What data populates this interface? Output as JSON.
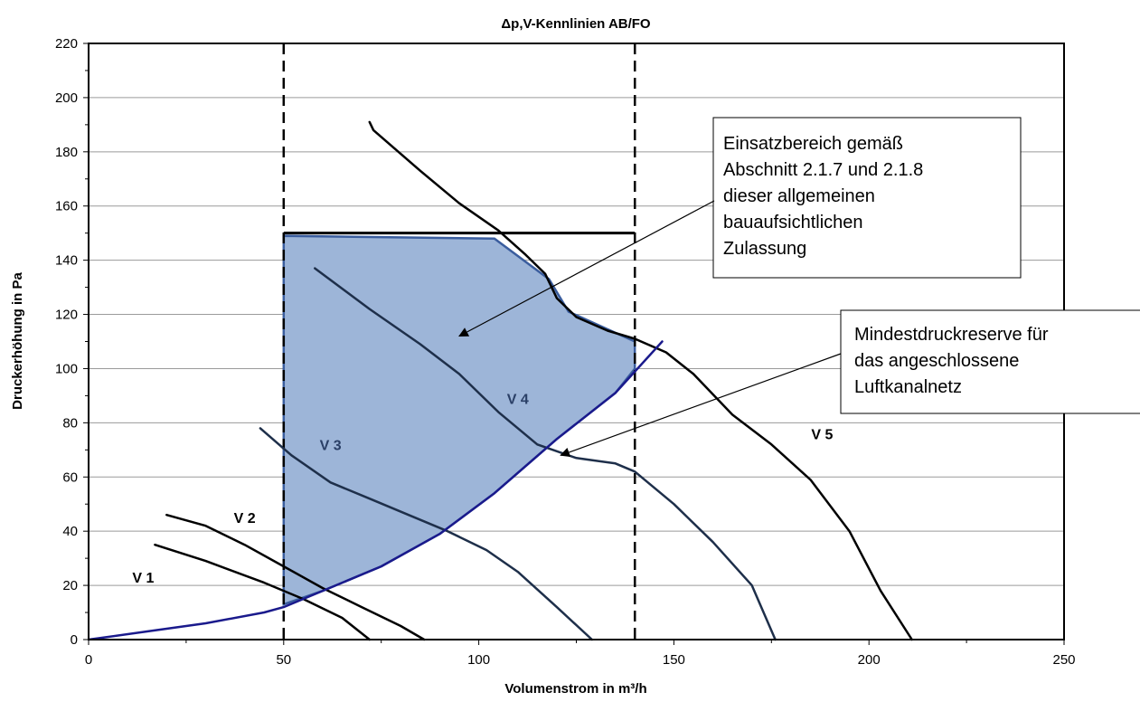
{
  "chart_data": {
    "type": "line",
    "title": "Δp,V-Kennlinien AB/FO",
    "xlabel": "Volumenstrom in m³/h",
    "ylabel": "Druckerhöhung in Pa",
    "xlim": [
      0,
      250
    ],
    "ylim": [
      0,
      220
    ],
    "xticks": [
      0,
      50,
      100,
      150,
      200,
      250
    ],
    "yticks": [
      0,
      20,
      40,
      60,
      80,
      100,
      120,
      140,
      160,
      180,
      200,
      220
    ],
    "grid": "horizontal",
    "series": [
      {
        "name": "V 1",
        "label_at": [
          14,
          23
        ],
        "points": [
          [
            17,
            35
          ],
          [
            30,
            29
          ],
          [
            45,
            21
          ],
          [
            55,
            15
          ],
          [
            65,
            8
          ],
          [
            72,
            0
          ]
        ]
      },
      {
        "name": "V 2",
        "label_at": [
          40,
          45
        ],
        "points": [
          [
            20,
            46
          ],
          [
            30,
            42
          ],
          [
            40,
            35
          ],
          [
            50,
            27
          ],
          [
            60,
            19
          ],
          [
            70,
            12
          ],
          [
            80,
            5
          ],
          [
            86,
            0
          ]
        ]
      },
      {
        "name": "V 3",
        "label_at": [
          62,
          72
        ],
        "points": [
          [
            44,
            78
          ],
          [
            52,
            68
          ],
          [
            62,
            58
          ],
          [
            72,
            52
          ],
          [
            82,
            46
          ],
          [
            92,
            40
          ],
          [
            102,
            33
          ],
          [
            110,
            25
          ],
          [
            120,
            12
          ],
          [
            129,
            0
          ]
        ]
      },
      {
        "name": "V 4",
        "label_at": [
          110,
          89
        ],
        "points": [
          [
            58,
            137
          ],
          [
            72,
            122
          ],
          [
            85,
            109
          ],
          [
            95,
            98
          ],
          [
            105,
            84
          ],
          [
            115,
            72
          ],
          [
            125,
            67
          ],
          [
            135,
            65
          ],
          [
            140,
            62
          ],
          [
            150,
            50
          ],
          [
            160,
            36
          ],
          [
            170,
            20
          ],
          [
            176,
            0
          ]
        ]
      },
      {
        "name": "V 5",
        "label_at": [
          188,
          76
        ],
        "points": [
          [
            72,
            191
          ],
          [
            73,
            188
          ],
          [
            85,
            173
          ],
          [
            95,
            161
          ],
          [
            105,
            151
          ],
          [
            112,
            142
          ],
          [
            117,
            135
          ],
          [
            120,
            126
          ],
          [
            125,
            119
          ],
          [
            133,
            114
          ],
          [
            140,
            111
          ],
          [
            148,
            106
          ],
          [
            155,
            98
          ],
          [
            165,
            83
          ],
          [
            175,
            72
          ],
          [
            185,
            59
          ],
          [
            195,
            40
          ],
          [
            203,
            18
          ],
          [
            211,
            0
          ]
        ]
      },
      {
        "name": "Mindestdruckreserve für das angeschlossene Luftkanalnetz",
        "points": [
          [
            0,
            0
          ],
          [
            15,
            3
          ],
          [
            30,
            6
          ],
          [
            45,
            10
          ],
          [
            50,
            12
          ],
          [
            60,
            18
          ],
          [
            75,
            27
          ],
          [
            90,
            39
          ],
          [
            104,
            54
          ],
          [
            120,
            74
          ],
          [
            135,
            91
          ],
          [
            147,
            110
          ]
        ]
      }
    ],
    "operating_area": {
      "name": "Einsatzbereich gemäß Abschnitt 2.1.7 und 2.1.8 dieser allgemeinen bauaufsichtlichen Zulassung",
      "points": [
        [
          50,
          13
        ],
        [
          50,
          149
        ],
        [
          104,
          148
        ],
        [
          118,
          133
        ],
        [
          123,
          121
        ],
        [
          140,
          110
        ],
        [
          140,
          100
        ],
        [
          135,
          91
        ],
        [
          120,
          74
        ],
        [
          104,
          54
        ],
        [
          90,
          39
        ],
        [
          75,
          27
        ],
        [
          60,
          18
        ],
        [
          50,
          13
        ]
      ]
    },
    "limits": {
      "x_min": 50,
      "x_max": 140,
      "y_max": 150
    },
    "annotations": [
      {
        "text": "Einsatzbereich gemäß Abschnitt 2.1.7 und 2.1.8 dieser allgemeinen bauaufsichtlichen Zulassung",
        "lines": [
          "Einsatzbereich gemäß",
          "Abschnitt 2.1.7 und 2.1.8",
          "dieser allgemeinen",
          "bauaufsichtlichen",
          "Zulassung"
        ],
        "arrow_to": [
          95,
          112
        ]
      },
      {
        "text": "Mindestdruckreserve für das angeschlossene Luftkanalnetz",
        "lines": [
          "Mindestdruckreserve für",
          "das angeschlossene",
          "Luftkanalnetz"
        ],
        "arrow_to": [
          121,
          68
        ]
      }
    ],
    "colors": {
      "area_fill": "#9db5d8",
      "area_stroke": "#3a5d9e",
      "reserve_line": "#1a1a8c",
      "curve": "#000000",
      "curve_v3v4": "#1e2f4a"
    }
  }
}
